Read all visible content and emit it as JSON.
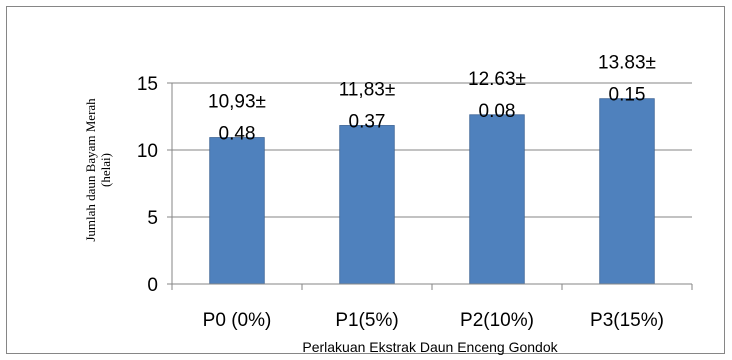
{
  "chart_data": {
    "type": "bar",
    "categories": [
      "P0 (0%)",
      "P1(5%)",
      "P2(10%)",
      "P3(15%)"
    ],
    "values": [
      10.93,
      11.83,
      12.63,
      13.83
    ],
    "data_labels": [
      [
        "10,93±",
        "0.48"
      ],
      [
        "11,83±",
        "0.37"
      ],
      [
        "12.63±",
        "0.08"
      ],
      [
        "13.83±",
        "0.15"
      ]
    ],
    "title": "",
    "xlabel": "Perlakuan Ekstrak Daun Enceng Gondok",
    "ylabel_lines": [
      "Jumlah daun Bayam Merah",
      "(helai)"
    ],
    "ylim": [
      0,
      15
    ],
    "yticks": [
      "0",
      "5",
      "10",
      "15"
    ],
    "grid": true,
    "legend": "none",
    "colors": {
      "bar": "#4F81BD",
      "bar_edge": "#3C6496",
      "grid": "#868686",
      "frame": "#868686"
    }
  }
}
